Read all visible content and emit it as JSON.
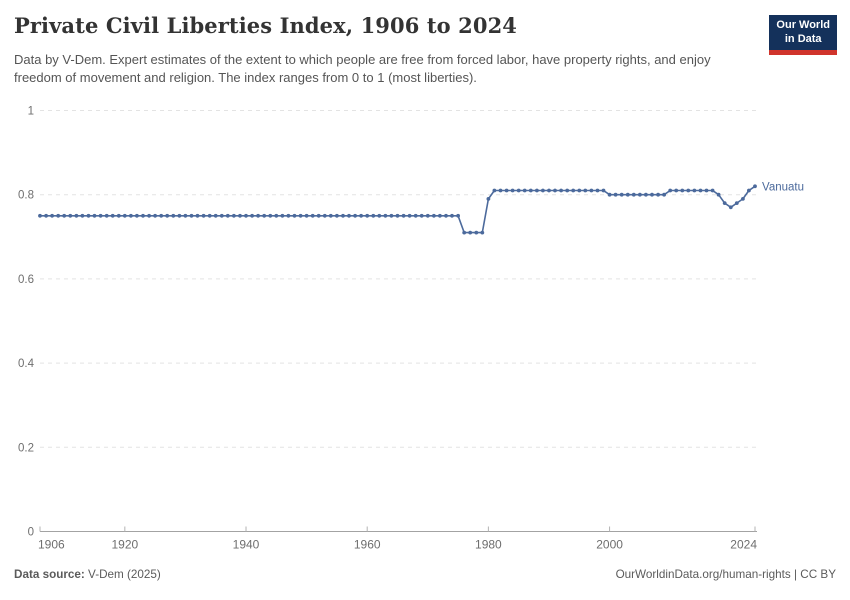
{
  "header": {
    "title": "Private Civil Liberties Index, 1906 to 2024",
    "subtitle": "Data by V-Dem. Expert estimates of the extent to which people are free from forced labor, have property rights, and enjoy freedom of movement and religion. The index ranges from 0 to 1 (most liberties).",
    "logo": {
      "line1": "Our World",
      "line2": "in Data",
      "bg_color": "#14315b",
      "accent_color": "#d0342c"
    }
  },
  "chart_data": {
    "type": "line",
    "title": "Private Civil Liberties Index, 1906 to 2024",
    "xlabel": "",
    "ylabel": "",
    "xlim": [
      1906,
      2024
    ],
    "ylim": [
      0,
      1
    ],
    "grid": "horizontal-dashed",
    "legend": "series-end-label",
    "x_ticks": [
      1906,
      1920,
      1940,
      1960,
      1980,
      2000,
      2024
    ],
    "y_ticks": [
      0,
      0.2,
      0.4,
      0.6,
      0.8,
      1
    ],
    "y_tick_labels": [
      "0",
      "0.2",
      "0.4",
      "0.6",
      "0.8",
      "1"
    ],
    "x": [
      1906,
      1907,
      1908,
      1909,
      1910,
      1911,
      1912,
      1913,
      1914,
      1915,
      1916,
      1917,
      1918,
      1919,
      1920,
      1921,
      1922,
      1923,
      1924,
      1925,
      1926,
      1927,
      1928,
      1929,
      1930,
      1931,
      1932,
      1933,
      1934,
      1935,
      1936,
      1937,
      1938,
      1939,
      1940,
      1941,
      1942,
      1943,
      1944,
      1945,
      1946,
      1947,
      1948,
      1949,
      1950,
      1951,
      1952,
      1953,
      1954,
      1955,
      1956,
      1957,
      1958,
      1959,
      1960,
      1961,
      1962,
      1963,
      1964,
      1965,
      1966,
      1967,
      1968,
      1969,
      1970,
      1971,
      1972,
      1973,
      1974,
      1975,
      1976,
      1977,
      1978,
      1979,
      1980,
      1981,
      1982,
      1983,
      1984,
      1985,
      1986,
      1987,
      1988,
      1989,
      1990,
      1991,
      1992,
      1993,
      1994,
      1995,
      1996,
      1997,
      1998,
      1999,
      2000,
      2001,
      2002,
      2003,
      2004,
      2005,
      2006,
      2007,
      2008,
      2009,
      2010,
      2011,
      2012,
      2013,
      2014,
      2015,
      2016,
      2017,
      2018,
      2019,
      2020,
      2021,
      2022,
      2023,
      2024
    ],
    "series": [
      {
        "name": "Vanuatu",
        "color": "#4c6a9c",
        "values": [
          0.75,
          0.75,
          0.75,
          0.75,
          0.75,
          0.75,
          0.75,
          0.75,
          0.75,
          0.75,
          0.75,
          0.75,
          0.75,
          0.75,
          0.75,
          0.75,
          0.75,
          0.75,
          0.75,
          0.75,
          0.75,
          0.75,
          0.75,
          0.75,
          0.75,
          0.75,
          0.75,
          0.75,
          0.75,
          0.75,
          0.75,
          0.75,
          0.75,
          0.75,
          0.75,
          0.75,
          0.75,
          0.75,
          0.75,
          0.75,
          0.75,
          0.75,
          0.75,
          0.75,
          0.75,
          0.75,
          0.75,
          0.75,
          0.75,
          0.75,
          0.75,
          0.75,
          0.75,
          0.75,
          0.75,
          0.75,
          0.75,
          0.75,
          0.75,
          0.75,
          0.75,
          0.75,
          0.75,
          0.75,
          0.75,
          0.75,
          0.75,
          0.75,
          0.75,
          0.75,
          0.71,
          0.71,
          0.71,
          0.71,
          0.79,
          0.81,
          0.81,
          0.81,
          0.81,
          0.81,
          0.81,
          0.81,
          0.81,
          0.81,
          0.81,
          0.81,
          0.81,
          0.81,
          0.81,
          0.81,
          0.81,
          0.81,
          0.81,
          0.81,
          0.8,
          0.8,
          0.8,
          0.8,
          0.8,
          0.8,
          0.8,
          0.8,
          0.8,
          0.8,
          0.81,
          0.81,
          0.81,
          0.81,
          0.81,
          0.81,
          0.81,
          0.81,
          0.8,
          0.78,
          0.77,
          0.78,
          0.79,
          0.81,
          0.82
        ]
      }
    ]
  },
  "footer": {
    "source_label": "Data source:",
    "source_value": " V-Dem (2025)",
    "rights": "OurWorldinData.org/human-rights | CC BY"
  }
}
